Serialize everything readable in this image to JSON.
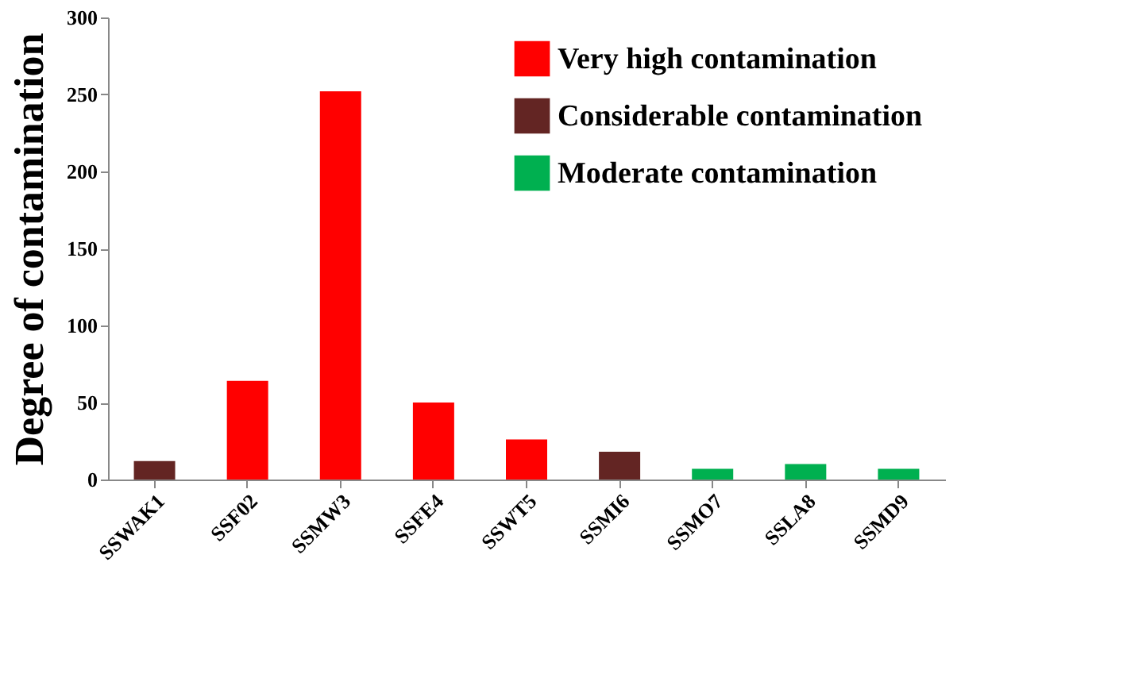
{
  "chart_data": {
    "type": "bar",
    "ylabel": "Degree of contamination",
    "categories": [
      "SSWAK1",
      "SSF02",
      "SSMW3",
      "SSFE4",
      "SSWT5",
      "SSMI6",
      "SSMO7",
      "SSLA8",
      "SSMD9"
    ],
    "series": [
      {
        "name": "Very high contamination",
        "color": "#ff0000",
        "values": [
          null,
          64,
          252,
          50,
          26,
          null,
          null,
          null,
          null
        ]
      },
      {
        "name": "Considerable contamination",
        "color": "#632523",
        "values": [
          12,
          null,
          null,
          null,
          null,
          18,
          null,
          null,
          null
        ]
      },
      {
        "name": "Moderate contamination",
        "color": "#00b050",
        "values": [
          null,
          null,
          null,
          null,
          null,
          null,
          7,
          10,
          7
        ]
      }
    ],
    "ylim": [
      0,
      300
    ],
    "yticks": [
      0,
      50,
      100,
      150,
      200,
      250,
      300
    ],
    "grid": false,
    "legend": "top right"
  }
}
